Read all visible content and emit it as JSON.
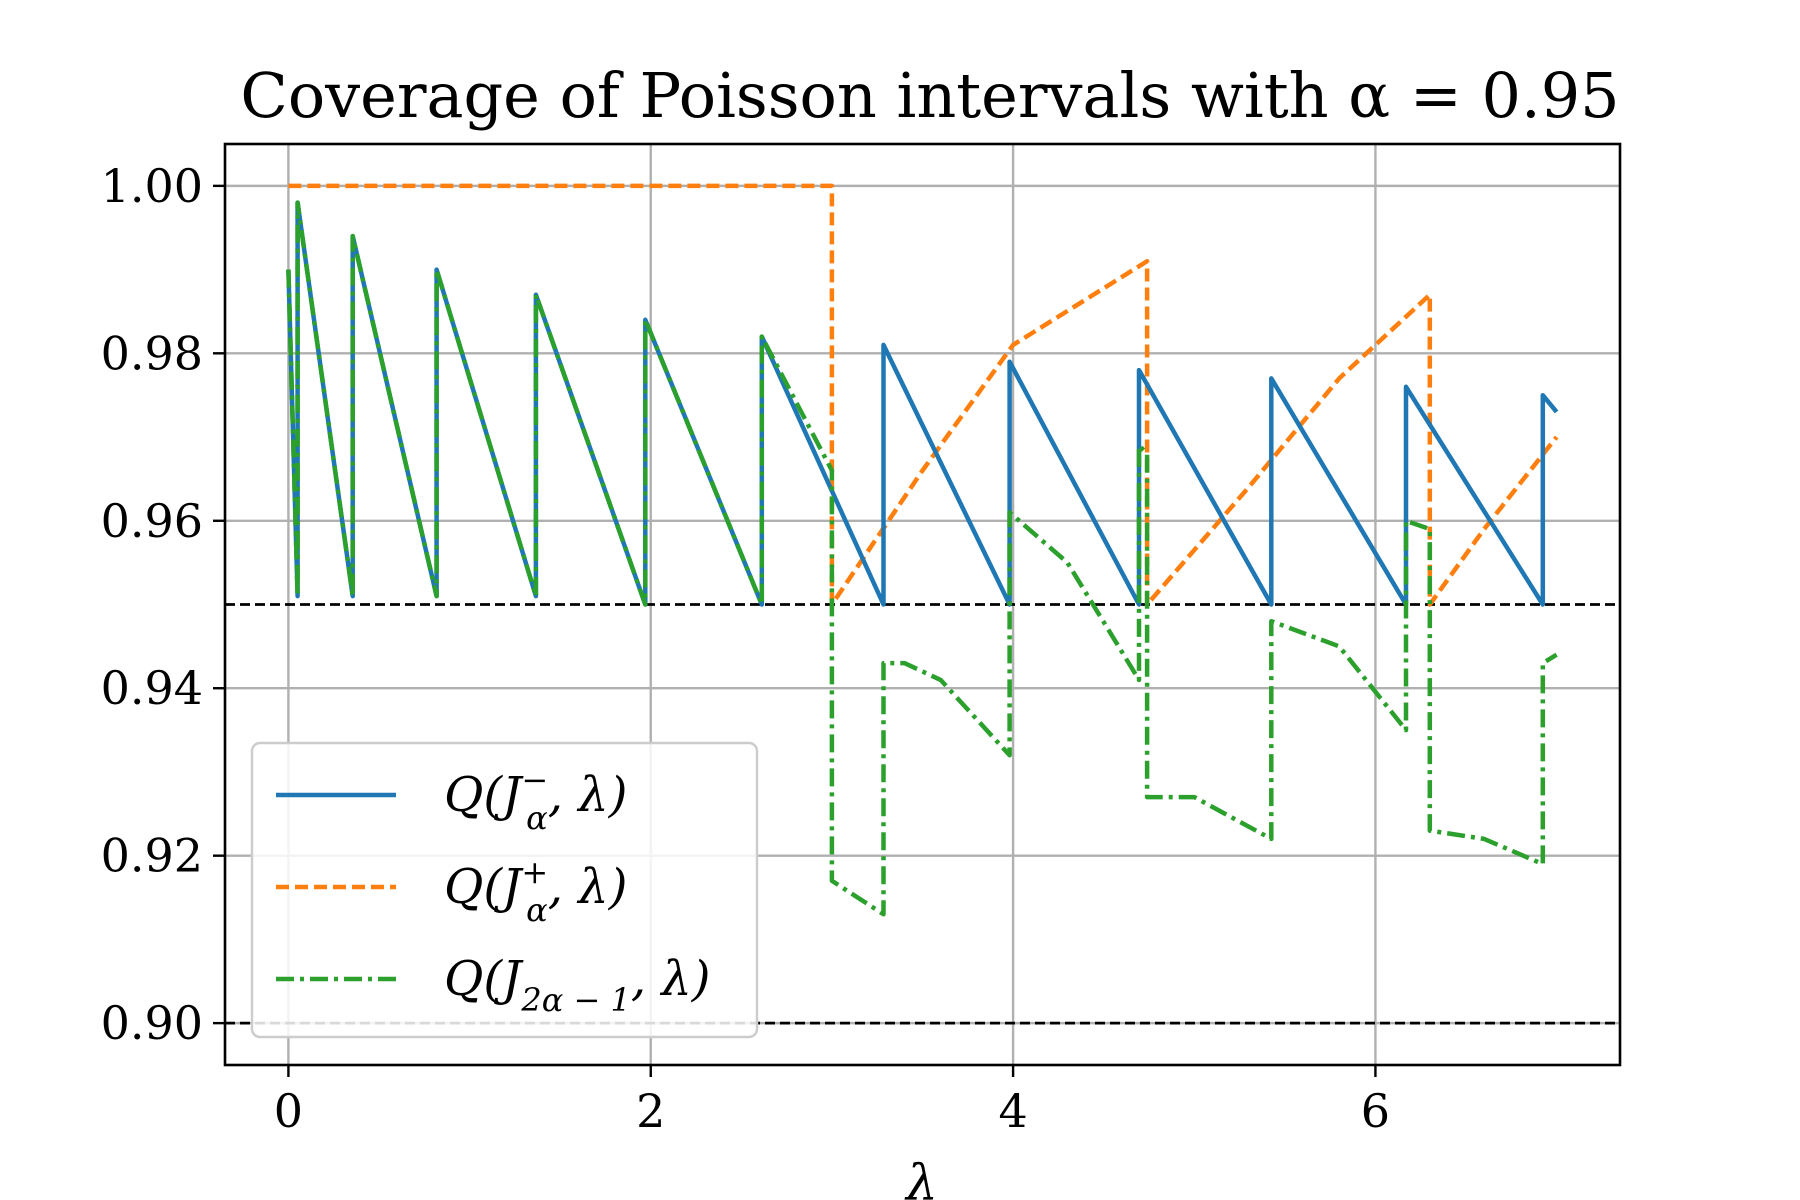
{
  "chart_data": {
    "type": "line",
    "title": "Coverage of Poisson intervals with α = 0.95",
    "xlabel": "λ",
    "ylabel": "",
    "xlim": [
      -0.35,
      7.35
    ],
    "ylim": [
      0.895,
      1.005
    ],
    "xticks": [
      0,
      2,
      4,
      6
    ],
    "yticks": [
      0.9,
      0.92,
      0.94,
      0.96,
      0.98,
      1.0
    ],
    "xtick_labels": [
      "0",
      "2",
      "4",
      "6"
    ],
    "ytick_labels": [
      "0.90",
      "0.92",
      "0.94",
      "0.96",
      "0.98",
      "1.00"
    ],
    "grid": true,
    "legend_position": "lower-left",
    "reference_lines": [
      {
        "y": 0.95,
        "style": "dashed",
        "color": "#000000"
      },
      {
        "y": 0.9,
        "style": "dashed",
        "color": "#000000"
      }
    ],
    "series": [
      {
        "name": "Q(J_α^−, λ)",
        "legend_parts": [
          "Q(J",
          "α",
          "−",
          ", λ)"
        ],
        "color": "#1f77b4",
        "style": "solid",
        "x": [
          0.0,
          0.051,
          0.051,
          0.355,
          0.355,
          0.818,
          0.818,
          1.366,
          1.366,
          1.97,
          1.97,
          2.613,
          2.613,
          3.285,
          3.285,
          3.981,
          3.981,
          4.695,
          4.695,
          5.425,
          5.425,
          6.169,
          6.169,
          6.924,
          6.924,
          7.0
        ],
        "y": [
          0.99,
          0.951,
          0.998,
          0.951,
          0.994,
          0.951,
          0.99,
          0.951,
          0.987,
          0.95,
          0.984,
          0.95,
          0.982,
          0.95,
          0.981,
          0.95,
          0.979,
          0.95,
          0.978,
          0.95,
          0.977,
          0.95,
          0.976,
          0.95,
          0.975,
          0.973
        ]
      },
      {
        "name": "Q(J_α^+, λ)",
        "legend_parts": [
          "Q(J",
          "α",
          "+",
          ", λ)"
        ],
        "color": "#ff7f0e",
        "style": "dashed",
        "x": [
          0.0,
          3.0,
          3.0,
          3.5,
          4.0,
          4.74,
          4.74,
          5.3,
          5.8,
          6.3,
          6.3,
          6.6,
          7.0
        ],
        "y": [
          1.0,
          1.0,
          0.95,
          0.966,
          0.981,
          0.991,
          0.95,
          0.964,
          0.977,
          0.987,
          0.95,
          0.959,
          0.97
        ]
      },
      {
        "name": "Q(J_{2α−1}, λ)",
        "legend_parts": [
          "Q(J",
          "2α − 1",
          "",
          ", λ)"
        ],
        "color": "#2ca02c",
        "style": "dashdot",
        "x": [
          0.0,
          0.051,
          0.051,
          0.355,
          0.355,
          0.818,
          0.818,
          1.366,
          1.366,
          1.97,
          1.97,
          2.613,
          2.613,
          3.0,
          3.0,
          3.285,
          3.285,
          3.4,
          3.6,
          3.981,
          3.981,
          4.3,
          4.695,
          4.695,
          4.74,
          4.74,
          5.0,
          5.425,
          5.425,
          5.8,
          6.169,
          6.169,
          6.3,
          6.3,
          6.6,
          6.924,
          6.924,
          7.0
        ],
        "y": [
          0.99,
          0.951,
          0.998,
          0.951,
          0.994,
          0.951,
          0.99,
          0.951,
          0.987,
          0.95,
          0.984,
          0.95,
          0.982,
          0.966,
          0.917,
          0.913,
          0.943,
          0.943,
          0.941,
          0.932,
          0.961,
          0.955,
          0.941,
          0.969,
          0.968,
          0.927,
          0.927,
          0.922,
          0.948,
          0.945,
          0.935,
          0.96,
          0.959,
          0.923,
          0.922,
          0.919,
          0.943,
          0.944
        ]
      }
    ]
  }
}
